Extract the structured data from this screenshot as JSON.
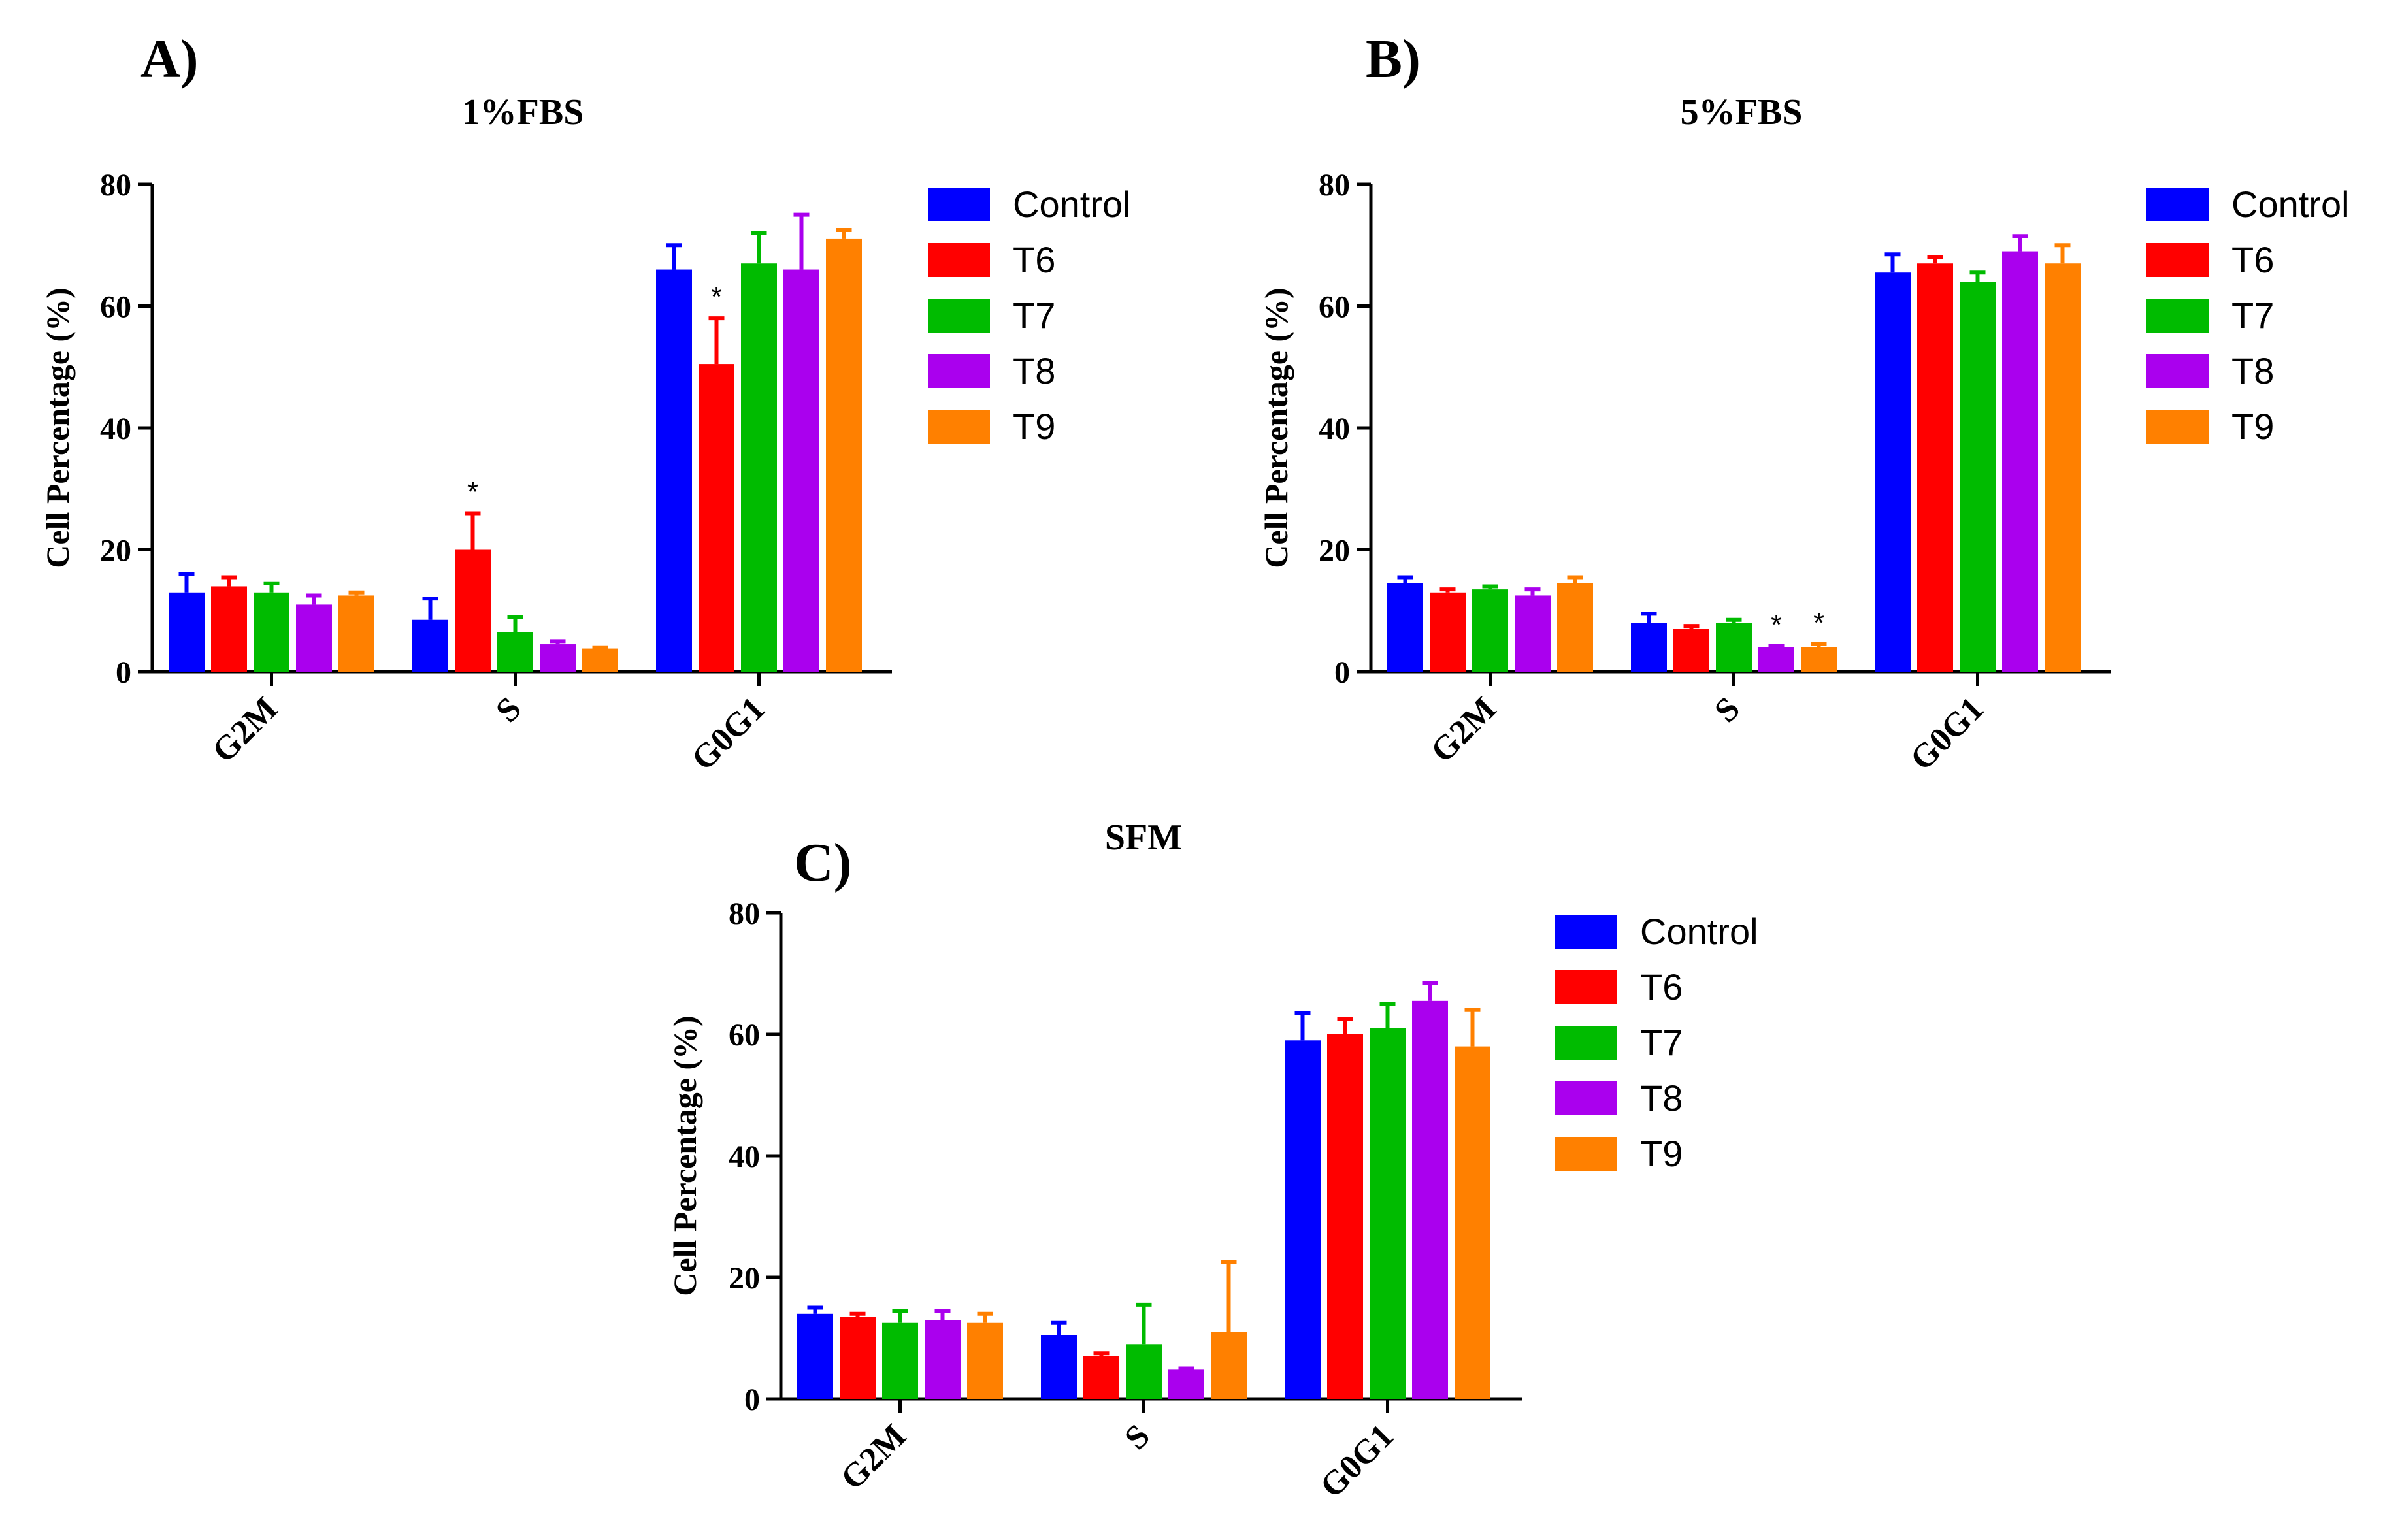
{
  "chart_data": [
    {
      "type": "bar",
      "panel": "A)",
      "title": "1%FBS",
      "ylabel": "Cell Percentage (%)",
      "xlabel": "",
      "ylim": [
        0,
        80
      ],
      "yticks": [
        "0",
        "20",
        "40",
        "60",
        "80"
      ],
      "categories": [
        "G2M",
        "S",
        "G0G1"
      ],
      "series": [
        {
          "name": "Control",
          "color": "#0000ff",
          "values": [
            13,
            8.5,
            66
          ],
          "errors": [
            3,
            3.5,
            4
          ]
        },
        {
          "name": "T6",
          "color": "#ff0000",
          "values": [
            14,
            20,
            50.5
          ],
          "errors": [
            1.5,
            6,
            7.5
          ]
        },
        {
          "name": "T7",
          "color": "#00bb00",
          "values": [
            13,
            6.5,
            67
          ],
          "errors": [
            1.5,
            2.5,
            5
          ]
        },
        {
          "name": "T8",
          "color": "#aa00ee",
          "values": [
            11,
            4.5,
            66
          ],
          "errors": [
            1.5,
            0.5,
            9
          ]
        },
        {
          "name": "T9",
          "color": "#ff8000",
          "values": [
            12.5,
            3.8,
            71
          ],
          "errors": [
            0.5,
            0.2,
            1.5
          ]
        }
      ],
      "annotations": [
        {
          "text": "*",
          "category": "S",
          "series": "T6"
        },
        {
          "text": "*",
          "category": "G0G1",
          "series": "T6"
        }
      ]
    },
    {
      "type": "bar",
      "panel": "B)",
      "title": "5%FBS",
      "ylabel": "Cell Percentage (%)",
      "xlabel": "",
      "ylim": [
        0,
        80
      ],
      "yticks": [
        "0",
        "20",
        "40",
        "60",
        "80"
      ],
      "categories": [
        "G2M",
        "S",
        "G0G1"
      ],
      "series": [
        {
          "name": "Control",
          "color": "#0000ff",
          "values": [
            14.5,
            8,
            65.5
          ],
          "errors": [
            1,
            1.5,
            3
          ]
        },
        {
          "name": "T6",
          "color": "#ff0000",
          "values": [
            13,
            7,
            67
          ],
          "errors": [
            0.5,
            0.5,
            1
          ]
        },
        {
          "name": "T7",
          "color": "#00bb00",
          "values": [
            13.5,
            8,
            64
          ],
          "errors": [
            0.5,
            0.5,
            1.5
          ]
        },
        {
          "name": "T8",
          "color": "#aa00ee",
          "values": [
            12.5,
            4,
            69
          ],
          "errors": [
            1,
            0.2,
            2.5
          ]
        },
        {
          "name": "T9",
          "color": "#ff8000",
          "values": [
            14.5,
            4,
            67
          ],
          "errors": [
            1,
            0.5,
            3
          ]
        }
      ],
      "annotations": [
        {
          "text": "*",
          "category": "S",
          "series": "T8"
        },
        {
          "text": "*",
          "category": "S",
          "series": "T9"
        }
      ]
    },
    {
      "type": "bar",
      "panel": "C)",
      "title": "SFM",
      "ylabel": "Cell Percentage (%)",
      "xlabel": "",
      "ylim": [
        0,
        80
      ],
      "yticks": [
        "0",
        "20",
        "40",
        "60",
        "80"
      ],
      "categories": [
        "G2M",
        "S",
        "G0G1"
      ],
      "series": [
        {
          "name": "Control",
          "color": "#0000ff",
          "values": [
            14,
            10.5,
            59
          ],
          "errors": [
            1,
            2,
            4.5
          ]
        },
        {
          "name": "T6",
          "color": "#ff0000",
          "values": [
            13.5,
            7,
            60
          ],
          "errors": [
            0.5,
            0.5,
            2.5
          ]
        },
        {
          "name": "T7",
          "color": "#00bb00",
          "values": [
            12.5,
            9,
            61
          ],
          "errors": [
            2,
            6.5,
            4
          ]
        },
        {
          "name": "T8",
          "color": "#aa00ee",
          "values": [
            13,
            4.8,
            65.5
          ],
          "errors": [
            1.5,
            0.2,
            3
          ]
        },
        {
          "name": "T9",
          "color": "#ff8000",
          "values": [
            12.5,
            11,
            58
          ],
          "errors": [
            1.5,
            11.5,
            6
          ]
        }
      ],
      "annotations": []
    }
  ]
}
